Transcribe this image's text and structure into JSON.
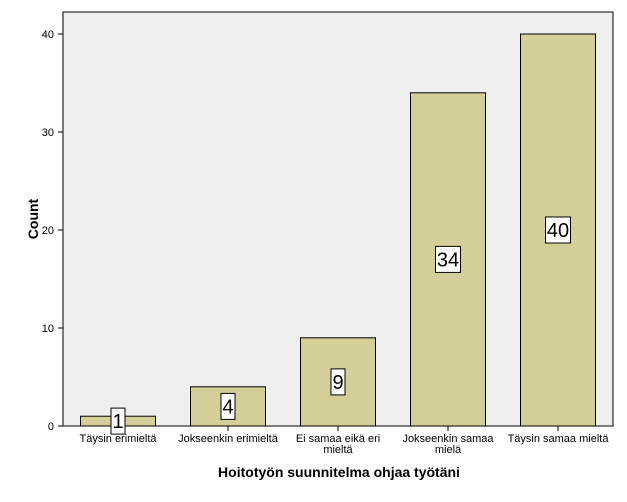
{
  "colors": {
    "plot_background": "#efefef",
    "bar_fill": "#d4cf98",
    "bar_stroke": "#000000",
    "label_box": "#ffffff"
  },
  "chart_data": {
    "type": "bar",
    "title": "",
    "xlabel": "Hoitotyön suunnitelma ohjaa työtäni",
    "ylabel": "Count",
    "categories": [
      [
        "Täysin erimieltä"
      ],
      [
        "Jokseenkin erimieltä"
      ],
      [
        "Ei samaa eikä eri",
        "mieltä"
      ],
      [
        "Jokseenkin samaa",
        "mielä"
      ],
      [
        "Täysin samaa mieltä"
      ]
    ],
    "values": [
      1,
      4,
      9,
      34,
      40
    ],
    "data_labels": [
      "1",
      "4",
      "9",
      "34",
      "40"
    ],
    "ylim": [
      0,
      42
    ],
    "yticks": [
      0,
      10,
      20,
      30,
      40
    ],
    "grid": false,
    "legend": false
  }
}
